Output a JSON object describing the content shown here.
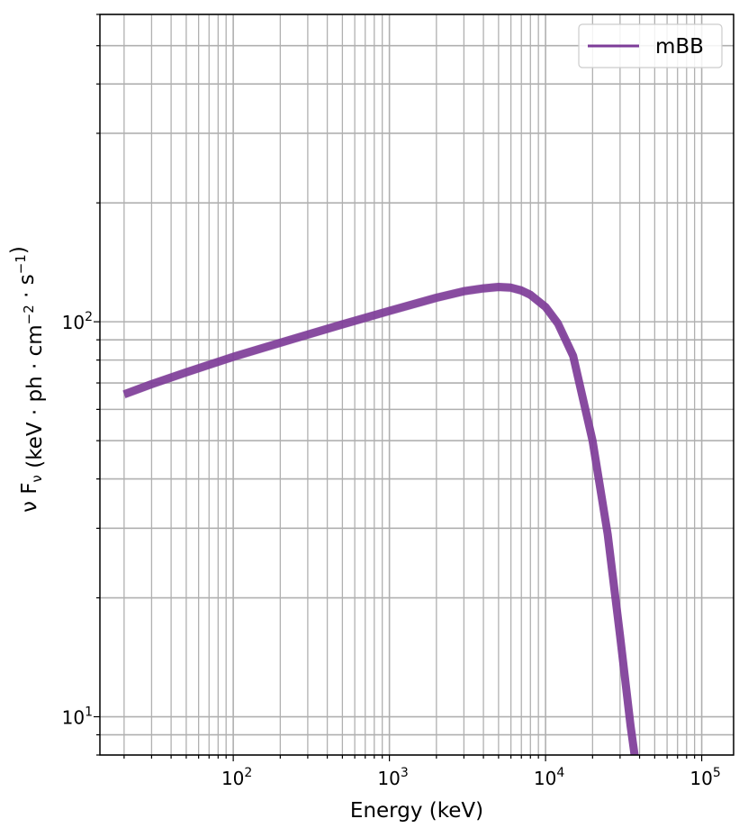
{
  "chart_data": {
    "type": "line",
    "title": "",
    "xlabel": "Energy (keV)",
    "ylabel": "ν F_ν (keV · ph · cm⁻² · s⁻¹)",
    "xscale": "log",
    "yscale": "log",
    "xlim": [
      14,
      160000
    ],
    "ylim": [
      8,
      600
    ],
    "grid": true,
    "grid_which": "both",
    "legend_position": "top-right",
    "x_ticks": [
      {
        "value": 100,
        "base": "10",
        "exp": "2"
      },
      {
        "value": 1000,
        "base": "10",
        "exp": "3"
      },
      {
        "value": 10000,
        "base": "10",
        "exp": "4"
      },
      {
        "value": 100000,
        "base": "10",
        "exp": "5"
      }
    ],
    "y_ticks": [
      {
        "value": 10,
        "base": "10",
        "exp": "1"
      },
      {
        "value": 100,
        "base": "10",
        "exp": "2"
      }
    ],
    "series": [
      {
        "name": "mBB",
        "color": "#7d3c98",
        "band": true,
        "x": [
          20,
          30,
          50,
          100,
          200,
          500,
          1000,
          2000,
          3000,
          4000,
          5000,
          6000,
          7000,
          8000,
          10000,
          12000,
          15000,
          20000,
          25000,
          30000,
          35000,
          38000
        ],
        "y": [
          65.5,
          69.5,
          74.5,
          81.5,
          88.5,
          98.5,
          106.5,
          115.0,
          119.5,
          121.5,
          122.5,
          122.0,
          120.0,
          117.0,
          109.0,
          99.0,
          82.0,
          50.0,
          29.0,
          16.0,
          9.5,
          7.5
        ]
      }
    ]
  }
}
